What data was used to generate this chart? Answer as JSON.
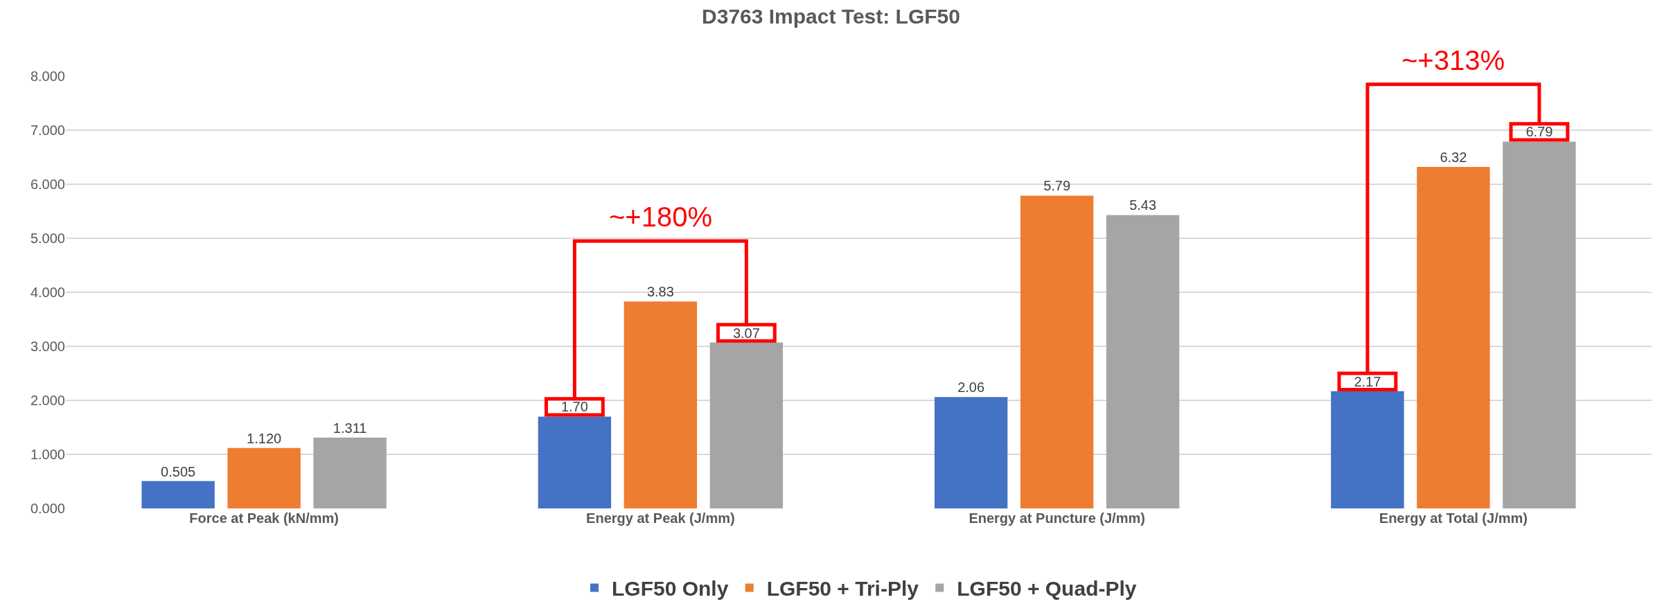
{
  "chart_data": {
    "type": "bar",
    "title": "D3763 Impact Test: LGF50",
    "categories": [
      "Force at Peak (kN/mm)",
      "Energy at Peak (J/mm)",
      "Energy at Puncture (J/mm)",
      "Energy at Total (J/mm)"
    ],
    "series": [
      {
        "name": "LGF50 Only",
        "color": "#4472c4",
        "values": [
          0.505,
          1.7,
          2.06,
          2.17
        ],
        "value_labels": [
          "0.505",
          "1.70",
          "2.06",
          "2.17"
        ]
      },
      {
        "name": "LGF50 + Tri-Ply",
        "color": "#ed7d31",
        "values": [
          1.12,
          3.83,
          5.79,
          6.32
        ],
        "value_labels": [
          "1.120",
          "3.83",
          "5.79",
          "6.32"
        ]
      },
      {
        "name": "LGF50 + Quad-Ply",
        "color": "#a5a5a5",
        "values": [
          1.311,
          3.07,
          5.43,
          6.79
        ],
        "value_labels": [
          "1.311",
          "3.07",
          "5.43",
          "6.79"
        ]
      }
    ],
    "ylim": [
      0,
      8
    ],
    "yticks": [
      {
        "value": 0,
        "label": "0.000"
      },
      {
        "value": 1,
        "label": "1.000"
      },
      {
        "value": 2,
        "label": "2.000"
      },
      {
        "value": 3,
        "label": "3.000"
      },
      {
        "value": 4,
        "label": "4.000"
      },
      {
        "value": 5,
        "label": "5.000"
      },
      {
        "value": 6,
        "label": "6.000"
      },
      {
        "value": 7,
        "label": "7.000"
      },
      {
        "value": 8,
        "label": "8.000"
      }
    ],
    "grid": "y",
    "legend": "bottom",
    "annotations": [
      "~+180%",
      "~+313%"
    ]
  }
}
